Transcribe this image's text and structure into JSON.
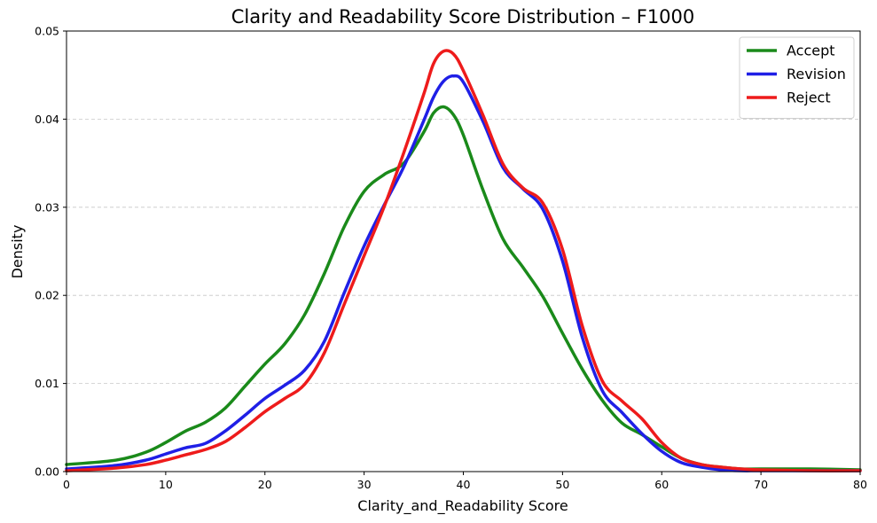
{
  "chart_data": {
    "type": "line",
    "title": "Clarity and Readability Score Distribution – F1000",
    "xlabel": "Clarity_and_Readability Score",
    "ylabel": "Density",
    "xlim": [
      0,
      80
    ],
    "ylim": [
      0,
      0.05
    ],
    "xticks": [
      0,
      10,
      20,
      30,
      40,
      50,
      60,
      70,
      80
    ],
    "yticks": [
      0.0,
      0.01,
      0.02,
      0.03,
      0.04,
      0.05
    ],
    "ytick_labels": [
      "0.00",
      "0.01",
      "0.02",
      "0.03",
      "0.04",
      "0.05"
    ],
    "grid": "horizontal dashed",
    "legend_position": "top-right",
    "series": [
      {
        "name": "Accept",
        "color": "#1a8a1a",
        "x": [
          0,
          5,
          8,
          10,
          12,
          14,
          16,
          18,
          20,
          22,
          24,
          26,
          28,
          30,
          32,
          34,
          36,
          37,
          38,
          39,
          40,
          42,
          44,
          46,
          48,
          50,
          52,
          54,
          56,
          58,
          60,
          62,
          64,
          66,
          68,
          70,
          75,
          80
        ],
        "y": [
          0.0008,
          0.0013,
          0.0022,
          0.0033,
          0.0046,
          0.0056,
          0.0072,
          0.0097,
          0.0122,
          0.0145,
          0.0178,
          0.0225,
          0.0278,
          0.0318,
          0.0337,
          0.035,
          0.0385,
          0.0407,
          0.0414,
          0.0405,
          0.0382,
          0.0319,
          0.0264,
          0.0232,
          0.0199,
          0.0157,
          0.0116,
          0.0081,
          0.0055,
          0.0042,
          0.0028,
          0.0015,
          0.0008,
          0.0005,
          0.0003,
          0.0003,
          0.0003,
          0.0002
        ]
      },
      {
        "name": "Revision",
        "color": "#1f1fe6",
        "x": [
          0,
          5,
          8,
          10,
          12,
          14,
          16,
          18,
          20,
          22,
          24,
          26,
          28,
          30,
          32,
          34,
          36,
          37,
          38,
          39,
          40,
          42,
          44,
          46,
          48,
          50,
          52,
          54,
          56,
          58,
          60,
          62,
          64,
          66,
          68,
          70,
          75,
          80
        ],
        "y": [
          0.0003,
          0.0007,
          0.0013,
          0.002,
          0.0027,
          0.0032,
          0.0046,
          0.0064,
          0.0083,
          0.0098,
          0.0115,
          0.0148,
          0.0203,
          0.0256,
          0.0302,
          0.0346,
          0.0398,
          0.0425,
          0.0443,
          0.0449,
          0.0442,
          0.0397,
          0.0345,
          0.0321,
          0.0298,
          0.0239,
          0.0152,
          0.0092,
          0.0067,
          0.0043,
          0.0023,
          0.001,
          0.0005,
          0.0002,
          0.0001,
          0.0001,
          0.0001,
          0.0001
        ]
      },
      {
        "name": "Reject",
        "color": "#ee1b1b",
        "x": [
          0,
          5,
          8,
          10,
          12,
          14,
          16,
          18,
          20,
          22,
          24,
          26,
          28,
          30,
          32,
          34,
          36,
          37,
          38,
          39,
          40,
          42,
          44,
          46,
          48,
          50,
          52,
          54,
          56,
          58,
          60,
          62,
          64,
          66,
          68,
          70,
          75,
          80
        ],
        "y": [
          0.0001,
          0.0004,
          0.0008,
          0.0013,
          0.0019,
          0.0025,
          0.0034,
          0.005,
          0.0068,
          0.0083,
          0.0099,
          0.0135,
          0.019,
          0.0245,
          0.03,
          0.0362,
          0.0428,
          0.0463,
          0.0477,
          0.0474,
          0.0455,
          0.0404,
          0.0349,
          0.0322,
          0.0305,
          0.0252,
          0.0165,
          0.0103,
          0.008,
          0.006,
          0.0033,
          0.0015,
          0.0008,
          0.0005,
          0.0003,
          0.0002,
          0.0001,
          0.0001
        ]
      }
    ]
  }
}
